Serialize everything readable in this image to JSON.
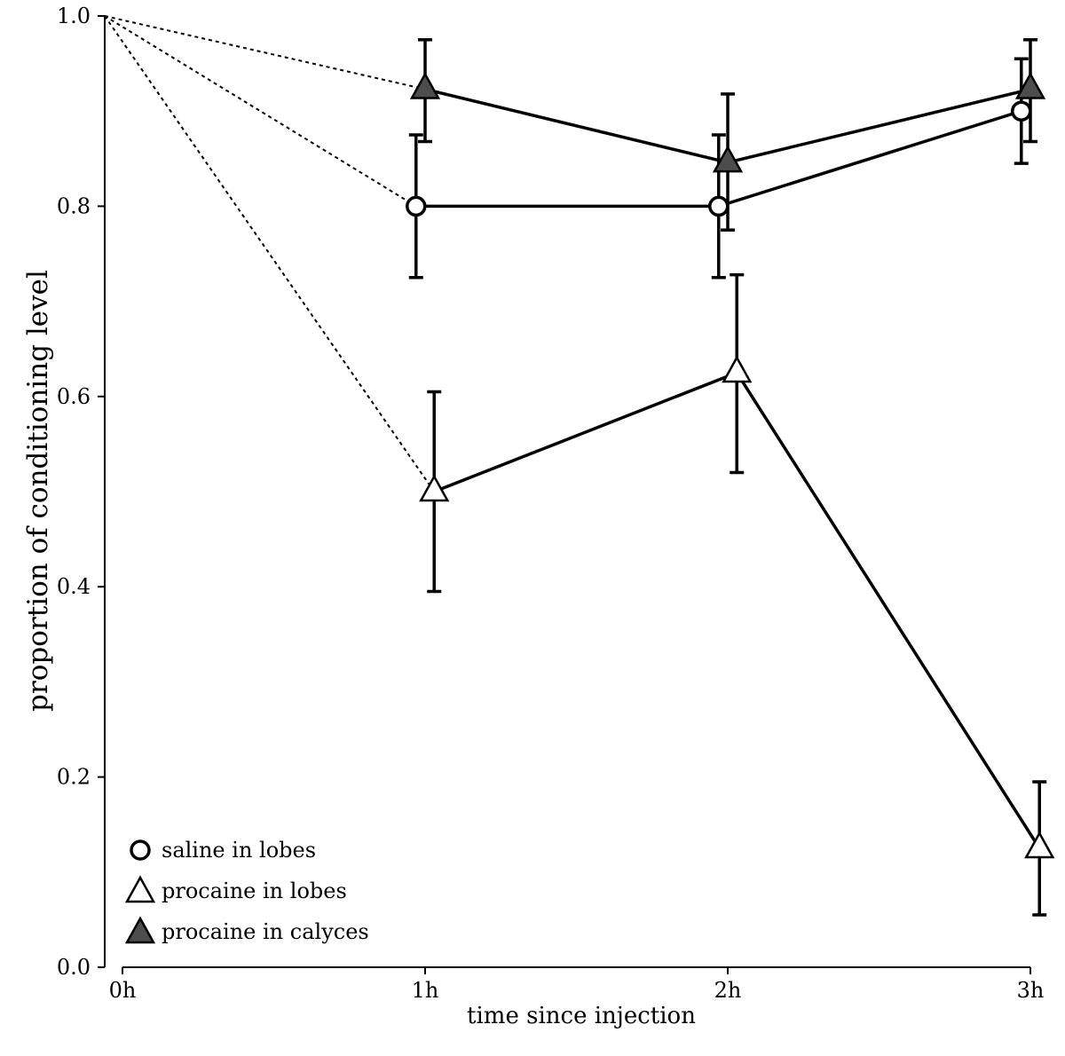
{
  "chart_data": {
    "type": "line",
    "title": "",
    "xlabel": "time since injection",
    "ylabel": "proportion of conditioning level",
    "categories": [
      "0h",
      "1h",
      "2h",
      "3h"
    ],
    "x": [
      0,
      1,
      2,
      3
    ],
    "ylim": [
      0.0,
      1.0
    ],
    "yticks": [
      "0.0",
      "0.2",
      "0.4",
      "0.6",
      "0.8",
      "1.0"
    ],
    "grid": false,
    "legend_position": "bottom-left",
    "start_point": {
      "x": 0,
      "y": 1.0,
      "line_style": "dotted"
    },
    "series": [
      {
        "name": "saline in lobes",
        "marker": "circle",
        "fill": "#ffffff",
        "x": [
          0.97,
          1.97,
          2.97
        ],
        "values": [
          0.8,
          0.8,
          0.9
        ],
        "err_low": [
          0.725,
          0.725,
          0.845
        ],
        "err_high": [
          0.875,
          0.875,
          0.955
        ]
      },
      {
        "name": "procaine in lobes",
        "marker": "triangle",
        "fill": "#ffffff",
        "x": [
          1.03,
          2.03,
          3.03
        ],
        "values": [
          0.5,
          0.625,
          0.125
        ],
        "err_low": [
          0.395,
          0.52,
          0.055
        ],
        "err_high": [
          0.605,
          0.728,
          0.195
        ]
      },
      {
        "name": "procaine in calyces",
        "marker": "triangle",
        "fill": "#4d4d4d",
        "x": [
          1.0,
          2.0,
          3.0
        ],
        "values": [
          0.923,
          0.846,
          0.923
        ],
        "err_low": [
          0.868,
          0.775,
          0.868
        ],
        "err_high": [
          0.975,
          0.918,
          0.975
        ]
      }
    ]
  }
}
